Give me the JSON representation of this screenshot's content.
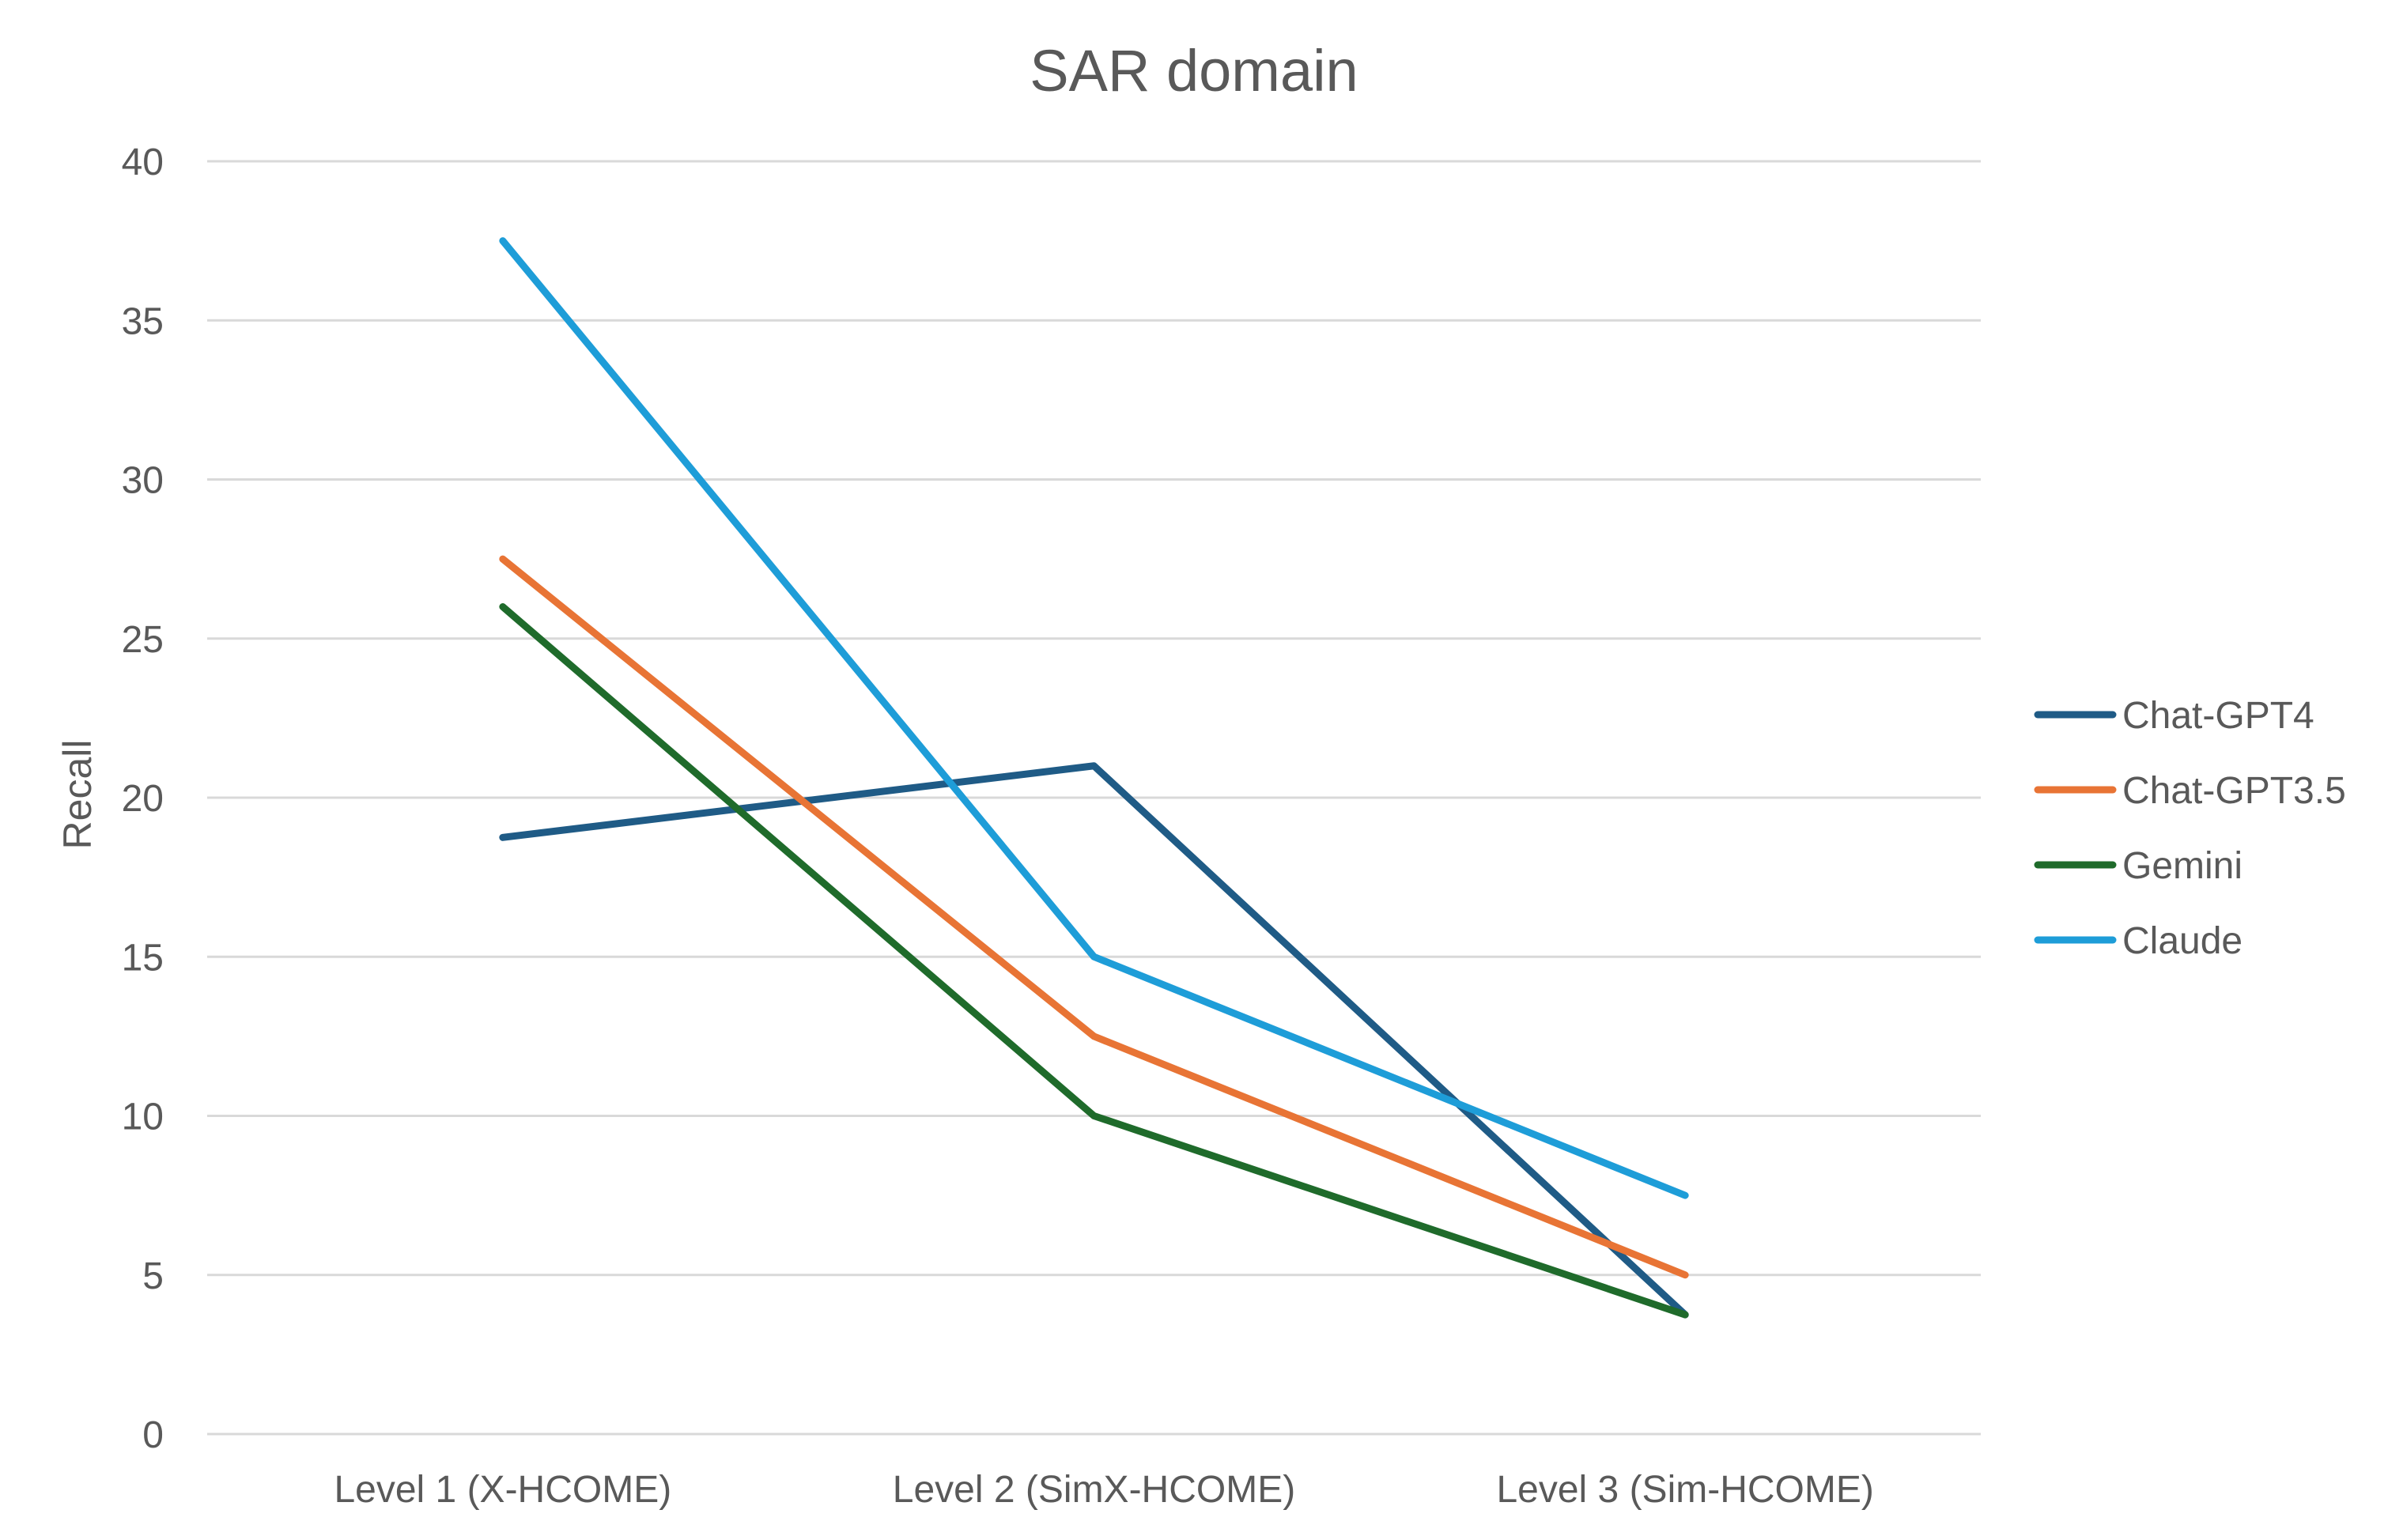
{
  "chart_data": {
    "type": "line",
    "title": "SAR domain",
    "xlabel": "",
    "ylabel": "Recall",
    "categories": [
      "Level 1 (X-HCOME)",
      "Level 2 (SimX-HCOME)",
      "Level 3 (Sim-HCOME)"
    ],
    "ylim": [
      0,
      40
    ],
    "yticks": [
      0,
      5,
      10,
      15,
      20,
      25,
      30,
      35,
      40
    ],
    "grid": true,
    "legend_position": "right",
    "series": [
      {
        "name": "Chat-GPT4",
        "color": "#1f5b86",
        "values": [
          18.75,
          21,
          3.75
        ]
      },
      {
        "name": "Chat-GPT3.5",
        "color": "#e87435",
        "values": [
          27.5,
          12.5,
          5
        ]
      },
      {
        "name": "Gemini",
        "color": "#1f6b2b",
        "values": [
          26,
          10,
          3.75
        ]
      },
      {
        "name": "Claude",
        "color": "#1e9dd8",
        "values": [
          37.5,
          15,
          7.5
        ]
      }
    ]
  }
}
